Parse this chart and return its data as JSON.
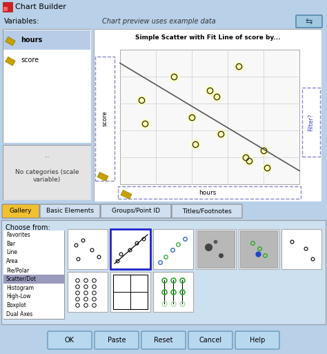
{
  "title": "Chart Builder",
  "bg_color": "#cce0f0",
  "panel_bg": "#ffffff",
  "variables_label": "Variables:",
  "preview_label": "Chart preview uses example data",
  "scatter_title": "Simple Scatter with Fit Line of score by...",
  "var1": "hours",
  "var2": "score",
  "no_cat_label": "No categories (scale\nvariable)",
  "xlabel": "hours",
  "ylabel": "score",
  "scatter_x": [
    2.1,
    2.2,
    3.0,
    3.5,
    3.6,
    4.0,
    4.2,
    4.3,
    4.8,
    5.0,
    5.1,
    5.5,
    5.6
  ],
  "scatter_y": [
    5.5,
    4.8,
    6.2,
    5.0,
    4.2,
    5.8,
    5.6,
    4.5,
    6.5,
    3.8,
    3.7,
    4.0,
    3.5
  ],
  "tab_labels": [
    "Gallery",
    "Basic Elements",
    "Groups/Point ID",
    "Titles/Footnotes"
  ],
  "active_tab": "Gallery",
  "choose_from_label": "Choose from:",
  "list_items": [
    "Favorites",
    "Bar",
    "Line",
    "Area",
    "Pie/Polar",
    "Scatter/Dot",
    "Histogram",
    "High-Low",
    "Boxplot",
    "Dual Axes"
  ],
  "selected_list": "Scatter/Dot",
  "button_labels": [
    "OK",
    "Paste",
    "Reset",
    "Cancel",
    "Help"
  ],
  "filter_label": "Filter?",
  "window_bg": "#b8d0e8",
  "tab_active_color": "#f0c030",
  "tab_inactive_color": "#d0e0f0",
  "scatter_marker_fill": "#ffffaa",
  "scatter_marker_edge": "#333333",
  "fit_line_color": "#555555",
  "grid_color": "#cccccc",
  "dashed_box_color": "#8888cc",
  "list_selected_bg": "#9999bb",
  "gallery_selected_border": "#2222cc",
  "icon_border": "#aaaaaa",
  "titlebar_bg": "#d0dff0",
  "scatter_bg": "#f8f8f8"
}
